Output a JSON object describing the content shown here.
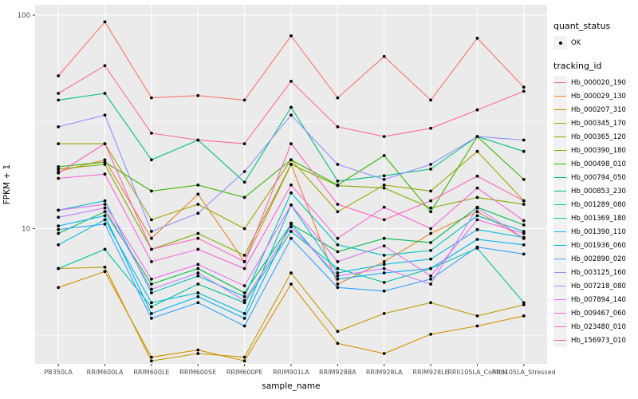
{
  "figure": {
    "background": "#ffffff",
    "panel_background": "#EBEBEB",
    "gridline_color": "#ffffff",
    "axis_text_color": "#4D4D4D",
    "axis_title_color": "#000000",
    "point_color": "#000000",
    "legend_key_fill": "#F2F2F2"
  },
  "legend": {
    "quant_status_title": "quant_status",
    "quant_status_items": [
      {
        "label": "OK",
        "symbol": "point"
      }
    ],
    "tracking_id_title": "tracking_id"
  },
  "chart_data": {
    "type": "line",
    "title": "",
    "xlabel": "sample_name",
    "ylabel": "FPKM + 1",
    "x_scale": "categorical",
    "y_scale": "log10",
    "ylim": [
      2.3,
      112
    ],
    "y_major_ticks": [
      10,
      100
    ],
    "y_major_tick_labels": [
      "10",
      "100"
    ],
    "y_minor_ticks": [
      3.1623,
      31.623
    ],
    "grid": "major-and-minor",
    "legend_position": "right",
    "point_marker": "filled-circle-black",
    "categories": [
      "PB350LA",
      "RRIM600LA",
      "RRIM600LE",
      "RRIM600SE",
      "RRIM600PE",
      "RRIM901LA",
      "RRIM928BA",
      "RRIM928LA",
      "RRIM928LE",
      "RRII105LA_Control",
      "RRII105LA_Stressed"
    ],
    "series": [
      {
        "name": "Hb_000020_190",
        "color": "#F8766D",
        "values": [
          52,
          93,
          41,
          42,
          40,
          80,
          41,
          64,
          40,
          78,
          46
        ]
      },
      {
        "name": "Hb_000029_130",
        "color": "#EA8331",
        "values": [
          18.5,
          21,
          9,
          14.5,
          7,
          20,
          5.5,
          7,
          9.5,
          12,
          9
        ]
      },
      {
        "name": "Hb_000207_310",
        "color": "#D89000",
        "values": [
          5.3,
          6.3,
          2.5,
          2.7,
          2.4,
          5.5,
          2.9,
          2.6,
          3.2,
          3.5,
          3.9
        ]
      },
      {
        "name": "Hb_000345_170",
        "color": "#C09B00",
        "values": [
          6.5,
          6.6,
          2.4,
          2.6,
          2.5,
          6.2,
          3.3,
          4.0,
          4.5,
          3.9,
          4.4
        ]
      },
      {
        "name": "Hb_000365_120",
        "color": "#A3A500",
        "values": [
          25,
          25,
          11,
          13,
          10,
          21,
          12,
          16,
          15,
          23,
          13.5
        ]
      },
      {
        "name": "Hb_000390_180",
        "color": "#7CAE00",
        "values": [
          19,
          20,
          8,
          9.5,
          7.5,
          20,
          15.9,
          15.5,
          12.5,
          14,
          13
        ]
      },
      {
        "name": "Hb_000498_010",
        "color": "#39B600",
        "values": [
          19.5,
          20.5,
          15,
          16,
          14,
          21,
          16,
          22,
          12,
          27,
          17
        ]
      },
      {
        "name": "Hb_000794_050",
        "color": "#00BB4E",
        "values": [
          9.5,
          12,
          5.5,
          6.5,
          5,
          10.5,
          7.8,
          9,
          8.6,
          12.6,
          10.4
        ]
      },
      {
        "name": "Hb_000853_230",
        "color": "#00BF7D",
        "values": [
          40,
          43,
          21,
          26,
          16.5,
          37,
          16.7,
          17.7,
          19,
          27,
          23
        ]
      },
      {
        "name": "Hb_001289_080",
        "color": "#00C1A3",
        "values": [
          6.5,
          8,
          4.3,
          5.5,
          4.5,
          9.7,
          6.5,
          5.6,
          6.5,
          8.1,
          4.5
        ]
      },
      {
        "name": "Hb_001369_180",
        "color": "#00BFC4",
        "values": [
          12.2,
          13.5,
          5,
          6,
          4.8,
          14.7,
          8.4,
          7.5,
          7.9,
          11.5,
          9.7
        ]
      },
      {
        "name": "Hb_001390_110",
        "color": "#00BADE",
        "values": [
          8.4,
          11,
          4.5,
          5,
          4.0,
          12.9,
          6.2,
          6.8,
          7.2,
          9.9,
          9.1
        ]
      },
      {
        "name": "Hb_001936_060",
        "color": "#00B0F6",
        "values": [
          10.3,
          11.5,
          4.0,
          4.8,
          3.8,
          10.6,
          5.8,
          6.2,
          6.5,
          8.9,
          8.4
        ]
      },
      {
        "name": "Hb_002890_020",
        "color": "#35A2FF",
        "values": [
          9.9,
          10.5,
          3.8,
          4.5,
          3.5,
          9.0,
          5.3,
          5.1,
          5.8,
          8.2,
          7.6
        ]
      },
      {
        "name": "Hb_003125_160",
        "color": "#9590FF",
        "values": [
          30,
          34,
          9.7,
          11.8,
          18.5,
          34,
          20,
          17,
          20,
          27,
          26
        ]
      },
      {
        "name": "Hb_007218_080",
        "color": "#C77CFF",
        "values": [
          11.3,
          12.5,
          5.2,
          6.2,
          4.6,
          10.2,
          6.0,
          6.5,
          5.5,
          12.5,
          9.0
        ]
      },
      {
        "name": "Hb_007894_140",
        "color": "#E76BF3",
        "values": [
          12.2,
          13,
          5.8,
          6.8,
          5.4,
          12.9,
          7.0,
          8.3,
          6.0,
          11.0,
          9.5
        ]
      },
      {
        "name": "Hb_009467_060",
        "color": "#FA62DB",
        "values": [
          17.2,
          18,
          7.0,
          8.0,
          6.5,
          16,
          9.0,
          12.6,
          10,
          15.5,
          10.9
        ]
      },
      {
        "name": "Hb_023480_010",
        "color": "#FF62BC",
        "values": [
          18.2,
          25,
          8,
          9,
          7,
          25,
          13,
          11,
          13.5,
          17.6,
          13.5
        ]
      },
      {
        "name": "Hb_156973_010",
        "color": "#FF6A98",
        "values": [
          43,
          58,
          28,
          26,
          25,
          49,
          30,
          27,
          29.5,
          36,
          44
        ]
      }
    ]
  }
}
